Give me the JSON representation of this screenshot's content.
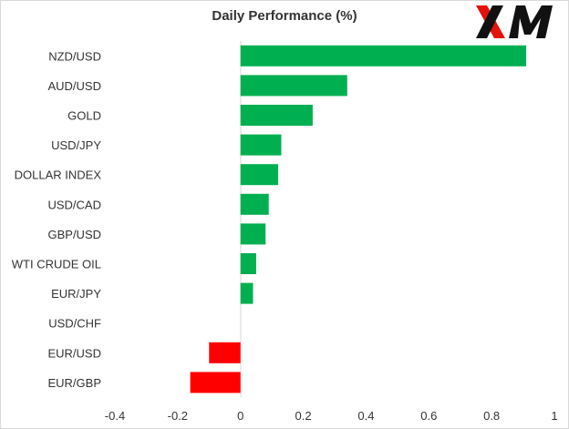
{
  "brand": {
    "logo_text": "XM",
    "logo_icon": "xm-logo-icon",
    "colors": {
      "black": "#111111",
      "red": "#e3120b"
    }
  },
  "chart_data": {
    "type": "bar",
    "orientation": "horizontal",
    "title": "Daily Performance (%)",
    "xlabel": "",
    "ylabel": "",
    "categories": [
      "NZD/USD",
      "AUD/USD",
      "GOLD",
      "USD/JPY",
      "DOLLAR INDEX",
      "USD/CAD",
      "GBP/USD",
      "WTI CRUDE OIL",
      "EUR/JPY",
      "USD/CHF",
      "EUR/USD",
      "EUR/GBP"
    ],
    "values": [
      0.91,
      0.34,
      0.23,
      0.13,
      0.12,
      0.09,
      0.08,
      0.05,
      0.04,
      0.0,
      -0.1,
      -0.16
    ],
    "xlim": [
      -0.4,
      1
    ],
    "xticks": [
      -0.4,
      -0.2,
      0,
      0.2,
      0.4,
      0.6,
      0.8,
      1
    ],
    "xtick_labels": [
      "-0.4",
      "-0.2",
      "0",
      "0.2",
      "0.4",
      "0.6",
      "0.8",
      "1"
    ],
    "grid": false,
    "legend": "none",
    "colors": {
      "positive": "#00b050",
      "negative": "#ff0000",
      "axis": "#d9d9d9"
    }
  }
}
